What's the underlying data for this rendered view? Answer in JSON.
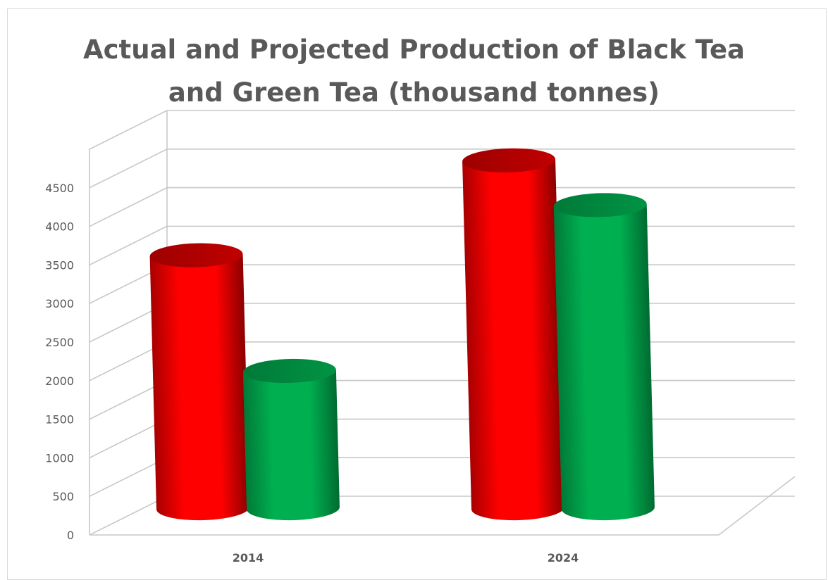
{
  "chart_data": {
    "type": "bar",
    "title": "Actual and Projected Production of Black Tea and Green Tea (thousand tonnes)",
    "title_lines": [
      "Actual and Projected Production of Black Tea",
      "and Green Tea (thousand tonnes)"
    ],
    "categories": [
      "2014",
      "2024"
    ],
    "series": [
      {
        "values": [
          3280,
          4510
        ],
        "color": "#ff0000"
      },
      {
        "values": [
          1780,
          3930
        ],
        "color": "#00b050"
      }
    ],
    "yticks": [
      "0",
      "500",
      "1000",
      "1500",
      "2000",
      "2500",
      "3000",
      "3500",
      "4000",
      "4500"
    ],
    "ylim": [
      0,
      5000
    ],
    "grid": true,
    "legend": "none",
    "style": "3d-cylinder"
  }
}
